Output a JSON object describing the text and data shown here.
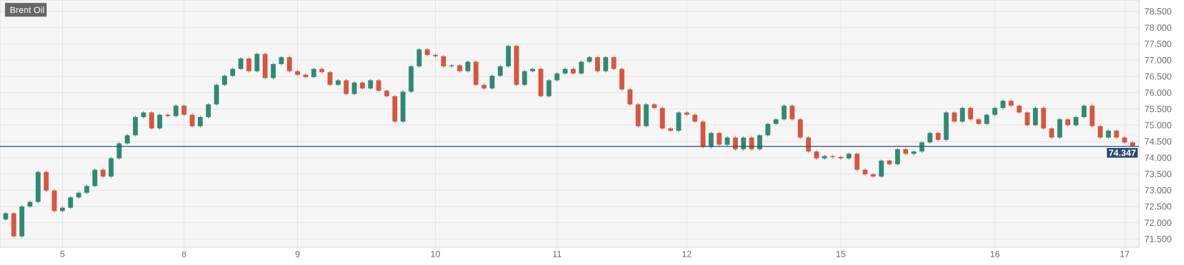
{
  "chart_data": {
    "type": "candlestick",
    "title": "Brent Oil",
    "categories": [
      null,
      null,
      null,
      null,
      null,
      null,
      null,
      "5",
      null,
      null,
      null,
      null,
      null,
      null,
      null,
      null,
      null,
      null,
      null,
      null,
      null,
      null,
      "8",
      null,
      null,
      null,
      null,
      null,
      null,
      null,
      null,
      null,
      null,
      null,
      null,
      null,
      "9",
      null,
      null,
      null,
      null,
      null,
      null,
      null,
      null,
      null,
      null,
      null,
      null,
      null,
      null,
      null,
      null,
      "10",
      null,
      null,
      null,
      null,
      null,
      null,
      null,
      null,
      null,
      null,
      null,
      null,
      null,
      null,
      "11",
      null,
      null,
      null,
      null,
      null,
      null,
      null,
      null,
      null,
      null,
      null,
      null,
      null,
      null,
      null,
      "12",
      null,
      null,
      null,
      null,
      null,
      null,
      null,
      null,
      null,
      null,
      null,
      null,
      null,
      null,
      null,
      null,
      null,
      null,
      "15",
      null,
      null,
      null,
      null,
      null,
      null,
      null,
      null,
      null,
      null,
      null,
      null,
      null,
      null,
      null,
      null,
      null,
      null,
      "16",
      null,
      null,
      null,
      null,
      null,
      null,
      null,
      null,
      null,
      null,
      null,
      null,
      null,
      null,
      null,
      "17",
      null
    ],
    "colors": [
      "#2f8a73",
      "#d9553f",
      "#2f8a73",
      "#2f8a73",
      "#2f8a73",
      "#d9553f",
      "#d9553f",
      "#2f8a73",
      "#2f8a73",
      "#2f8a73",
      "#2f8a73",
      "#2f8a73",
      "#d9553f",
      "#2f8a73",
      "#2f8a73",
      "#2f8a73",
      "#2f8a73",
      "#2f8a73",
      "#d9553f",
      "#2f8a73",
      "#d9553f",
      "#2f8a73",
      "#d9553f",
      "#d9553f",
      "#2f8a73",
      "#2f8a73",
      "#2f8a73",
      "#2f8a73",
      "#2f8a73",
      "#2f8a73",
      "#d9553f",
      "#2f8a73",
      "#d9553f",
      "#2f8a73",
      "#2f8a73",
      "#d9553f",
      "#d9553f",
      "#d9553f",
      "#2f8a73",
      "#d9553f",
      "#d9553f",
      "#2f8a73",
      "#d9553f",
      "#2f8a73",
      "#d9553f",
      "#2f8a73",
      "#d9553f",
      "#d9553f",
      "#d9553f",
      "#2f8a73",
      "#2f8a73",
      "#2f8a73",
      "#d9553f",
      "#d9553f",
      "#d9553f",
      "#2f8a73",
      "#d9553f",
      "#2f8a73",
      "#d9553f",
      "#d9553f",
      "#2f8a73",
      "#2f8a73",
      "#2f8a73",
      "#d9553f",
      "#2f8a73",
      "#2f8a73",
      "#d9553f",
      "#2f8a73",
      "#2f8a73",
      "#2f8a73",
      "#d9553f",
      "#2f8a73",
      "#2f8a73",
      "#d9553f",
      "#2f8a73",
      "#d9553f",
      "#d9553f",
      "#d9553f",
      "#d9553f",
      "#2f8a73",
      "#d9553f",
      "#d9553f",
      "#d9553f",
      "#2f8a73",
      "#d9553f",
      "#d9553f",
      "#d9553f",
      "#2f8a73",
      "#d9553f",
      "#2f8a73",
      "#d9553f",
      "#2f8a73",
      "#d9553f",
      "#2f8a73",
      "#2f8a73",
      "#2f8a73",
      "#2f8a73",
      "#d9553f",
      "#d9553f",
      "#d9553f",
      "#d9553f",
      "#2f8a73",
      "#d9553f",
      "#d9553f",
      "#2f8a73",
      "#d9553f",
      "#d9553f",
      "#d9553f",
      "#2f8a73",
      "#d9553f",
      "#2f8a73",
      "#d9553f",
      "#2f8a73",
      "#2f8a73",
      "#2f8a73",
      "#d9553f",
      "#2f8a73",
      "#d9553f",
      "#2f8a73",
      "#d9553f",
      "#d9553f",
      "#2f8a73",
      "#2f8a73",
      "#2f8a73",
      "#d9553f",
      "#d9553f",
      "#d9553f",
      "#2f8a73",
      "#d9553f",
      "#d9553f",
      "#2f8a73",
      "#d9553f",
      "#2f8a73",
      "#2f8a73",
      "#d9553f",
      "#d9553f",
      "#2f8a73",
      "#d9553f",
      "#d9553f",
      "#d9553f"
    ],
    "ohlc": [
      [
        72.1,
        72.33,
        72.06,
        72.29
      ],
      [
        72.29,
        72.33,
        71.54,
        71.58
      ],
      [
        71.58,
        72.54,
        71.54,
        72.5
      ],
      [
        72.5,
        72.68,
        72.46,
        72.64
      ],
      [
        72.64,
        73.6,
        72.6,
        73.56
      ],
      [
        73.56,
        73.6,
        72.95,
        72.99
      ],
      [
        72.99,
        73.03,
        72.32,
        72.36
      ],
      [
        72.36,
        72.5,
        72.32,
        72.46
      ],
      [
        72.46,
        72.82,
        72.42,
        72.78
      ],
      [
        72.78,
        72.96,
        72.74,
        72.92
      ],
      [
        72.92,
        73.17,
        72.88,
        73.13
      ],
      [
        73.13,
        73.67,
        73.09,
        73.63
      ],
      [
        73.63,
        73.67,
        73.38,
        73.42
      ],
      [
        73.42,
        74.02,
        73.38,
        73.98
      ],
      [
        73.98,
        74.48,
        73.94,
        74.44
      ],
      [
        74.44,
        74.73,
        74.4,
        74.69
      ],
      [
        74.69,
        75.29,
        74.65,
        75.25
      ],
      [
        75.25,
        75.43,
        75.21,
        75.39
      ],
      [
        75.39,
        75.43,
        74.86,
        74.9
      ],
      [
        74.9,
        75.36,
        74.86,
        75.32
      ],
      [
        75.32,
        75.36,
        75.24,
        75.28
      ],
      [
        75.28,
        75.64,
        75.24,
        75.6
      ],
      [
        75.6,
        75.64,
        75.28,
        75.32
      ],
      [
        75.32,
        75.36,
        74.93,
        74.97
      ],
      [
        74.97,
        75.29,
        74.93,
        75.25
      ],
      [
        75.25,
        75.68,
        75.21,
        75.64
      ],
      [
        75.64,
        76.28,
        75.6,
        76.24
      ],
      [
        76.24,
        76.56,
        76.2,
        76.52
      ],
      [
        76.52,
        76.77,
        76.48,
        76.73
      ],
      [
        76.73,
        77.09,
        76.69,
        77.05
      ],
      [
        77.05,
        77.09,
        76.62,
        76.66
      ],
      [
        76.66,
        77.23,
        76.62,
        77.19
      ],
      [
        77.19,
        77.23,
        76.41,
        76.45
      ],
      [
        76.45,
        76.92,
        76.41,
        76.88
      ],
      [
        76.88,
        77.13,
        76.84,
        77.09
      ],
      [
        77.09,
        77.13,
        76.62,
        76.66
      ],
      [
        76.66,
        76.7,
        76.51,
        76.55
      ],
      [
        76.55,
        76.59,
        76.44,
        76.48
      ],
      [
        76.48,
        76.77,
        76.44,
        76.73
      ],
      [
        76.73,
        76.77,
        76.59,
        76.63
      ],
      [
        76.63,
        76.67,
        76.2,
        76.24
      ],
      [
        76.24,
        76.42,
        76.2,
        76.38
      ],
      [
        76.38,
        76.42,
        75.92,
        75.96
      ],
      [
        75.96,
        76.35,
        75.92,
        76.31
      ],
      [
        76.31,
        76.35,
        76.09,
        76.13
      ],
      [
        76.13,
        76.42,
        76.09,
        76.38
      ],
      [
        76.38,
        76.42,
        76.02,
        76.06
      ],
      [
        76.06,
        76.1,
        75.85,
        75.89
      ],
      [
        75.89,
        75.93,
        75.07,
        75.11
      ],
      [
        75.11,
        76.07,
        75.07,
        76.03
      ],
      [
        76.03,
        76.85,
        75.99,
        76.81
      ],
      [
        76.81,
        77.37,
        76.77,
        77.33
      ],
      [
        77.33,
        77.37,
        77.12,
        77.16
      ],
      [
        77.16,
        77.2,
        77.08,
        77.12
      ],
      [
        77.12,
        77.16,
        76.77,
        76.81
      ],
      [
        76.81,
        76.88,
        76.77,
        76.84
      ],
      [
        76.84,
        76.88,
        76.62,
        76.66
      ],
      [
        76.66,
        76.99,
        76.62,
        76.95
      ],
      [
        76.95,
        76.99,
        76.2,
        76.24
      ],
      [
        76.24,
        76.28,
        76.09,
        76.13
      ],
      [
        76.13,
        76.56,
        76.09,
        76.52
      ],
      [
        76.52,
        76.85,
        76.48,
        76.81
      ],
      [
        76.81,
        77.48,
        76.77,
        77.44
      ],
      [
        77.44,
        77.48,
        76.2,
        76.24
      ],
      [
        76.24,
        76.7,
        76.2,
        76.66
      ],
      [
        76.66,
        76.77,
        76.62,
        76.73
      ],
      [
        76.73,
        76.77,
        75.85,
        75.89
      ],
      [
        75.89,
        76.42,
        75.85,
        76.38
      ],
      [
        76.38,
        76.63,
        76.34,
        76.59
      ],
      [
        76.59,
        76.77,
        76.55,
        76.73
      ],
      [
        76.73,
        76.77,
        76.55,
        76.59
      ],
      [
        76.59,
        76.99,
        76.55,
        76.95
      ],
      [
        76.95,
        77.13,
        76.91,
        77.09
      ],
      [
        77.09,
        77.13,
        76.62,
        76.66
      ],
      [
        76.66,
        77.13,
        76.62,
        77.09
      ],
      [
        77.09,
        77.13,
        76.69,
        76.73
      ],
      [
        76.73,
        76.77,
        76.06,
        76.1
      ],
      [
        76.1,
        76.14,
        75.6,
        75.64
      ],
      [
        75.64,
        75.68,
        74.93,
        74.97
      ],
      [
        74.97,
        75.68,
        74.93,
        75.64
      ],
      [
        75.64,
        75.68,
        75.49,
        75.53
      ],
      [
        75.53,
        75.57,
        74.86,
        74.9
      ],
      [
        74.9,
        74.94,
        74.79,
        74.83
      ],
      [
        74.83,
        75.43,
        74.79,
        75.39
      ],
      [
        75.39,
        75.43,
        75.28,
        75.32
      ],
      [
        75.32,
        75.36,
        75.07,
        75.11
      ],
      [
        75.11,
        75.15,
        74.29,
        74.33
      ],
      [
        74.33,
        74.8,
        74.29,
        74.76
      ],
      [
        74.76,
        74.8,
        74.36,
        74.4
      ],
      [
        74.4,
        74.66,
        74.36,
        74.62
      ],
      [
        74.62,
        74.66,
        74.22,
        74.26
      ],
      [
        74.26,
        74.66,
        74.22,
        74.62
      ],
      [
        74.62,
        74.66,
        74.22,
        74.26
      ],
      [
        74.26,
        74.73,
        74.22,
        74.69
      ],
      [
        74.69,
        75.08,
        74.65,
        75.04
      ],
      [
        75.04,
        75.22,
        75.0,
        75.18
      ],
      [
        75.18,
        75.64,
        75.14,
        75.6
      ],
      [
        75.6,
        75.64,
        75.14,
        75.18
      ],
      [
        75.18,
        75.22,
        74.58,
        74.62
      ],
      [
        74.62,
        74.66,
        74.15,
        74.19
      ],
      [
        74.19,
        74.23,
        73.94,
        73.98
      ],
      [
        73.98,
        74.09,
        73.94,
        74.05
      ],
      [
        74.05,
        74.09,
        73.98,
        74.02
      ],
      [
        74.02,
        74.06,
        73.94,
        73.98
      ],
      [
        73.98,
        74.16,
        73.94,
        74.12
      ],
      [
        74.12,
        74.16,
        73.59,
        73.63
      ],
      [
        73.63,
        73.67,
        73.45,
        73.49
      ],
      [
        73.49,
        73.53,
        73.38,
        73.42
      ],
      [
        73.42,
        73.95,
        73.38,
        73.91
      ],
      [
        73.91,
        73.95,
        73.76,
        73.8
      ],
      [
        73.8,
        74.3,
        73.76,
        74.26
      ],
      [
        74.26,
        74.3,
        74.08,
        74.12
      ],
      [
        74.12,
        74.23,
        74.08,
        74.19
      ],
      [
        74.19,
        74.51,
        74.15,
        74.47
      ],
      [
        74.47,
        74.8,
        74.43,
        74.76
      ],
      [
        74.76,
        74.8,
        74.51,
        74.55
      ],
      [
        74.55,
        75.43,
        74.51,
        75.39
      ],
      [
        75.39,
        75.43,
        75.07,
        75.11
      ],
      [
        75.11,
        75.57,
        75.07,
        75.53
      ],
      [
        75.53,
        75.57,
        75.14,
        75.18
      ],
      [
        75.18,
        75.22,
        75.0,
        75.04
      ],
      [
        75.04,
        75.36,
        75.0,
        75.32
      ],
      [
        75.32,
        75.57,
        75.28,
        75.53
      ],
      [
        75.53,
        75.79,
        75.49,
        75.75
      ],
      [
        75.75,
        75.79,
        75.56,
        75.6
      ],
      [
        75.6,
        75.64,
        75.35,
        75.39
      ],
      [
        75.39,
        75.43,
        74.96,
        75.0
      ],
      [
        75.0,
        75.57,
        74.96,
        75.53
      ],
      [
        75.53,
        75.57,
        74.86,
        74.9
      ],
      [
        74.9,
        74.94,
        74.58,
        74.62
      ],
      [
        74.62,
        75.22,
        74.58,
        75.18
      ],
      [
        75.18,
        75.22,
        74.96,
        75.0
      ],
      [
        75.0,
        75.29,
        74.96,
        75.25
      ],
      [
        75.25,
        75.64,
        75.21,
        75.6
      ],
      [
        75.6,
        75.64,
        74.93,
        74.97
      ],
      [
        74.97,
        75.01,
        74.58,
        74.62
      ],
      [
        74.62,
        74.87,
        74.58,
        74.83
      ],
      [
        74.83,
        74.87,
        74.58,
        74.62
      ],
      [
        74.62,
        74.66,
        74.43,
        74.47
      ],
      [
        74.47,
        74.51,
        74.32,
        74.36
      ]
    ],
    "ylim": [
      71.25,
      78.85
    ],
    "yticks": [
      {
        "value": 71.5,
        "label": "71.500"
      },
      {
        "value": 72,
        "label": "72.000"
      },
      {
        "value": 72.5,
        "label": "72.500"
      },
      {
        "value": 73,
        "label": "73.000"
      },
      {
        "value": 73.5,
        "label": "73.500"
      },
      {
        "value": 74,
        "label": "74.000"
      },
      {
        "value": 74.5,
        "label": "74.500"
      },
      {
        "value": 75,
        "label": "75.000"
      },
      {
        "value": 75.5,
        "label": "75.500"
      },
      {
        "value": 76,
        "label": "76.000"
      },
      {
        "value": 76.5,
        "label": "76.500"
      },
      {
        "value": 77,
        "label": "77.000"
      },
      {
        "value": 77.5,
        "label": "77.500"
      },
      {
        "value": 78,
        "label": "78.000"
      },
      {
        "value": 78.5,
        "label": "78.500"
      }
    ],
    "ref_lines": [
      {
        "axis": "y",
        "value": 74.347,
        "label": "74.347",
        "color": "#2a4a75"
      }
    ],
    "grid": true
  }
}
